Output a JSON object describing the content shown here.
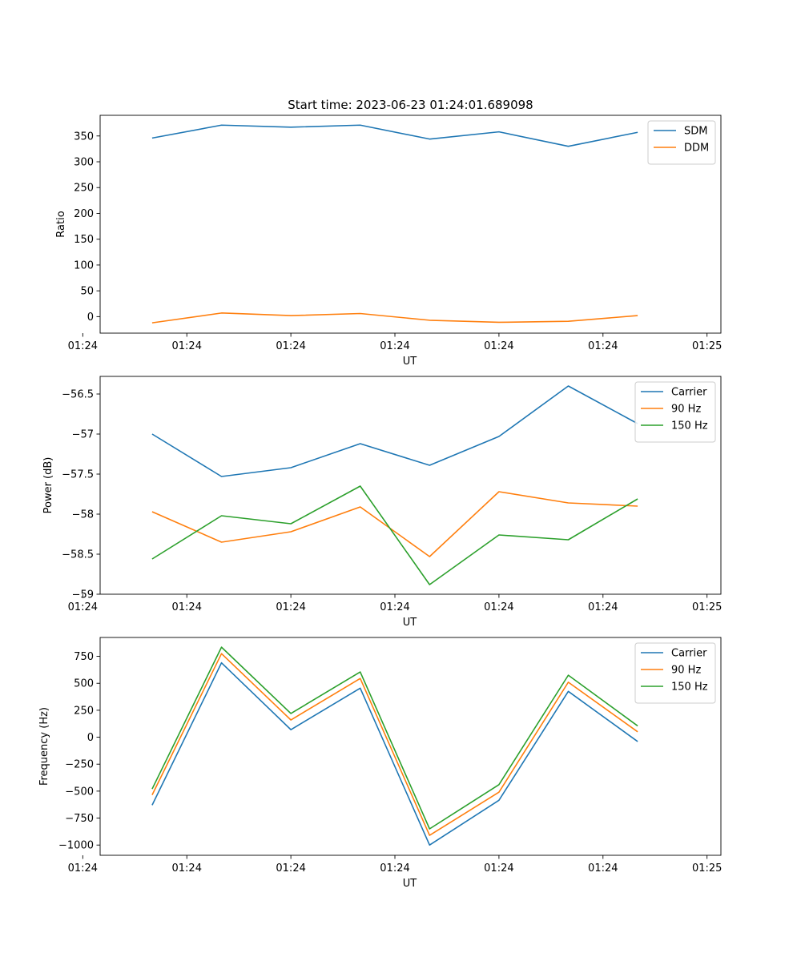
{
  "figure": {
    "title": "Start time: 2023-06-23 01:24:01.689098"
  },
  "colors": {
    "blue": "#1f77b4",
    "orange": "#ff7f0e",
    "green": "#2ca02c"
  },
  "chart_data": [
    {
      "type": "line",
      "title": "Start time: 2023-06-23 01:24:01.689098",
      "xlabel": "UT",
      "ylabel": "Ratio",
      "x": [
        1,
        2,
        3,
        4,
        5,
        6,
        7,
        8
      ],
      "xlim": [
        0.25,
        9.2
      ],
      "x_ticks": [
        {
          "x": 0.0,
          "label": "01:24"
        },
        {
          "x": 1.5,
          "label": "01:24"
        },
        {
          "x": 3.0,
          "label": "01:24"
        },
        {
          "x": 4.5,
          "label": "01:24"
        },
        {
          "x": 6.0,
          "label": "01:24"
        },
        {
          "x": 7.5,
          "label": "01:24"
        },
        {
          "x": 9.0,
          "label": "01:25"
        }
      ],
      "ylim": [
        -32,
        390
      ],
      "y_ticks": [
        0,
        50,
        100,
        150,
        200,
        250,
        300,
        350
      ],
      "grid": false,
      "legend": "top-right",
      "series": [
        {
          "name": "SDM",
          "color": "#1f77b4",
          "values": [
            346,
            371,
            367,
            371,
            344,
            358,
            330,
            357
          ]
        },
        {
          "name": "DDM",
          "color": "#ff7f0e",
          "values": [
            -12,
            7,
            2,
            6,
            -7,
            -11,
            -9,
            2
          ]
        }
      ]
    },
    {
      "type": "line",
      "xlabel": "UT",
      "ylabel": "Power (dB)",
      "x": [
        1,
        2,
        3,
        4,
        5,
        6,
        7,
        8
      ],
      "xlim": [
        0.25,
        9.2
      ],
      "x_ticks": [
        {
          "x": 0.0,
          "label": "01:24"
        },
        {
          "x": 1.5,
          "label": "01:24"
        },
        {
          "x": 3.0,
          "label": "01:24"
        },
        {
          "x": 4.5,
          "label": "01:24"
        },
        {
          "x": 6.0,
          "label": "01:24"
        },
        {
          "x": 7.5,
          "label": "01:24"
        },
        {
          "x": 9.0,
          "label": "01:25"
        }
      ],
      "ylim": [
        -59.0,
        -56.28
      ],
      "y_ticks": [
        -59.0,
        -58.5,
        -58.0,
        -57.5,
        -57.0,
        -56.5
      ],
      "grid": false,
      "legend": "top-right",
      "series": [
        {
          "name": "Carrier",
          "color": "#1f77b4",
          "values": [
            -57.0,
            -57.53,
            -57.42,
            -57.12,
            -57.39,
            -57.03,
            -56.4,
            -56.87
          ]
        },
        {
          "name": "90 Hz",
          "color": "#ff7f0e",
          "values": [
            -57.97,
            -58.35,
            -58.22,
            -57.91,
            -58.53,
            -57.72,
            -57.86,
            -57.9
          ]
        },
        {
          "name": "150 Hz",
          "color": "#2ca02c",
          "values": [
            -58.56,
            -58.02,
            -58.12,
            -57.65,
            -58.88,
            -58.26,
            -58.32,
            -57.81
          ]
        }
      ]
    },
    {
      "type": "line",
      "xlabel": "UT",
      "ylabel": "Frequency (Hz)",
      "x": [
        1,
        2,
        3,
        4,
        5,
        6,
        7,
        8
      ],
      "xlim": [
        0.25,
        9.2
      ],
      "x_ticks": [
        {
          "x": 0.0,
          "label": "01:24"
        },
        {
          "x": 1.5,
          "label": "01:24"
        },
        {
          "x": 3.0,
          "label": "01:24"
        },
        {
          "x": 4.5,
          "label": "01:24"
        },
        {
          "x": 6.0,
          "label": "01:24"
        },
        {
          "x": 7.5,
          "label": "01:24"
        },
        {
          "x": 9.0,
          "label": "01:25"
        }
      ],
      "ylim": [
        -1095,
        925
      ],
      "y_ticks": [
        -1000,
        -750,
        -500,
        -250,
        0,
        250,
        500,
        750
      ],
      "grid": false,
      "legend": "top-right",
      "series": [
        {
          "name": "Carrier",
          "color": "#1f77b4",
          "values": [
            -630,
            690,
            70,
            455,
            -1000,
            -585,
            425,
            -40
          ]
        },
        {
          "name": "90 Hz",
          "color": "#ff7f0e",
          "values": [
            -535,
            775,
            160,
            545,
            -910,
            -510,
            510,
            50
          ]
        },
        {
          "name": "150 Hz",
          "color": "#2ca02c",
          "values": [
            -480,
            835,
            220,
            605,
            -850,
            -440,
            575,
            105
          ]
        }
      ]
    }
  ]
}
